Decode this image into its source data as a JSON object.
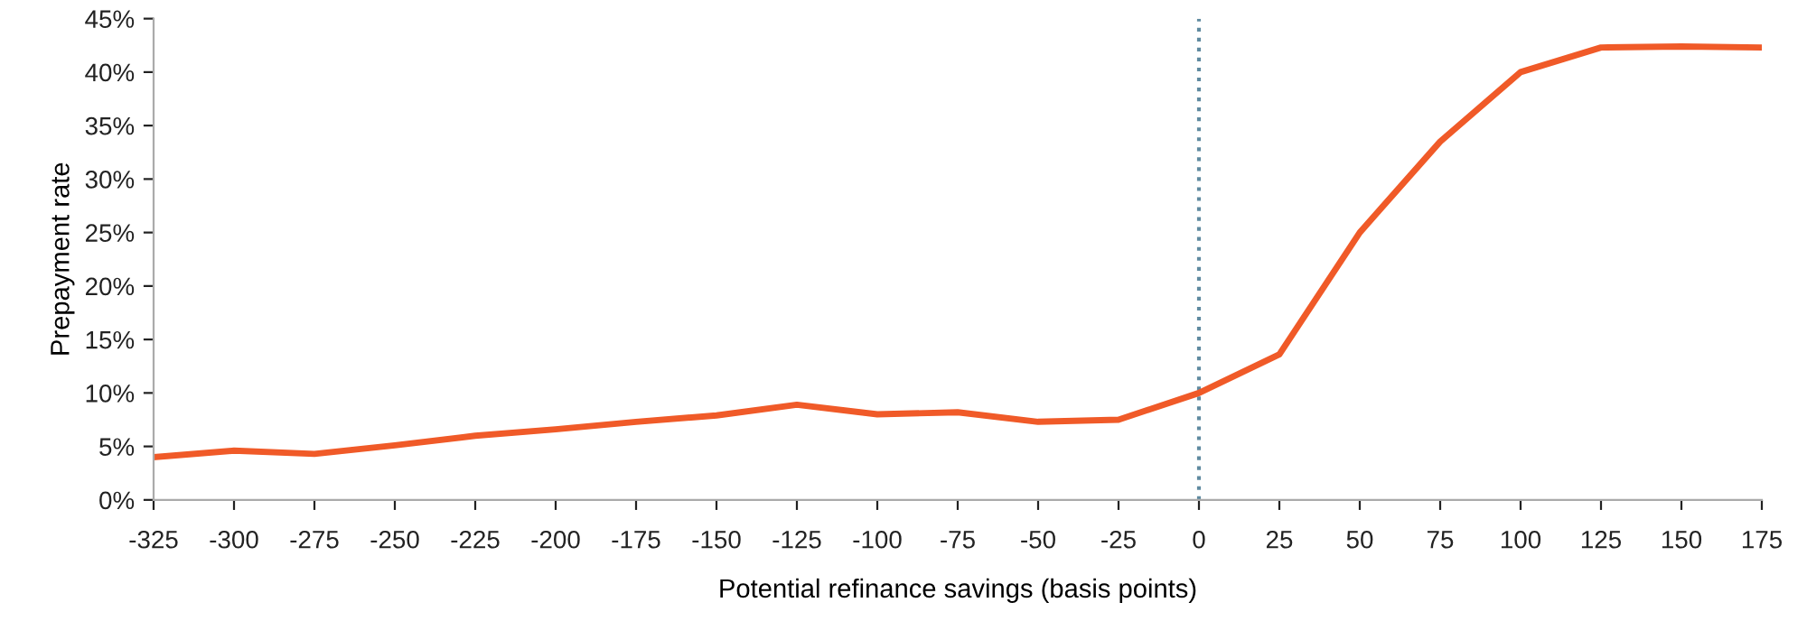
{
  "chart_data": {
    "type": "line",
    "xlabel": "Potential refinance savings (basis points)",
    "ylabel": "Prepayment rate",
    "x": [
      -325,
      -300,
      -275,
      -250,
      -225,
      -200,
      -175,
      -150,
      -125,
      -100,
      -75,
      -50,
      -25,
      0,
      25,
      50,
      75,
      100,
      125,
      150,
      175
    ],
    "series": [
      {
        "color": "#f05a28",
        "values": [
          4.0,
          4.6,
          4.3,
          5.1,
          6.0,
          6.6,
          7.3,
          7.9,
          8.9,
          8.0,
          8.2,
          7.3,
          7.5,
          10.0,
          13.6,
          25.0,
          33.5,
          40.0,
          42.3,
          42.4,
          42.3
        ]
      }
    ],
    "xlim": [
      -325,
      175
    ],
    "xticks": [
      -325,
      -300,
      -275,
      -250,
      -225,
      -200,
      -175,
      -150,
      -125,
      -100,
      -75,
      -50,
      -25,
      0,
      25,
      50,
      75,
      100,
      125,
      150,
      175
    ],
    "ylim": [
      0,
      45
    ],
    "yticks": [
      {
        "value": 0,
        "label": "0%"
      },
      {
        "value": 5,
        "label": "5%"
      },
      {
        "value": 10,
        "label": "10%"
      },
      {
        "value": 15,
        "label": "15%"
      },
      {
        "value": 20,
        "label": "20%"
      },
      {
        "value": 25,
        "label": "25%"
      },
      {
        "value": 30,
        "label": "30%"
      },
      {
        "value": 35,
        "label": "35%"
      },
      {
        "value": 40,
        "label": "40%"
      },
      {
        "value": 45,
        "label": "45%"
      }
    ],
    "ref_lines": [
      {
        "axis": "x",
        "value": 0,
        "color": "#5f8aa0",
        "line_style": "dotted"
      }
    ],
    "marker": "none",
    "line_style": "solid"
  }
}
